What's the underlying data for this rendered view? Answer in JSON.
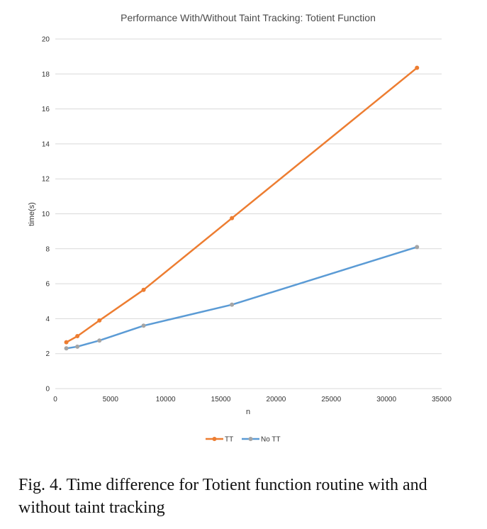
{
  "chart_data": {
    "type": "line",
    "title": "Performance With/Without Taint Tracking: Totient Function",
    "xlabel": "n",
    "ylabel": "time(s)",
    "xlim": [
      0,
      35000
    ],
    "ylim": [
      0,
      20
    ],
    "xticks": [
      0,
      5000,
      10000,
      15000,
      20000,
      25000,
      30000,
      35000
    ],
    "yticks": [
      0,
      2,
      4,
      6,
      8,
      10,
      12,
      14,
      16,
      18,
      20
    ],
    "grid": "horizontal",
    "legend_position": "bottom",
    "series": [
      {
        "name": "TT",
        "color": "#ed7d31",
        "x": [
          1000,
          2000,
          4000,
          8000,
          16000,
          32768
        ],
        "y": [
          2.65,
          3.0,
          3.9,
          5.65,
          9.75,
          18.35
        ]
      },
      {
        "name": "No TT",
        "color": "#5b9bd5",
        "marker_color": "#a5a5a5",
        "x": [
          1000,
          2000,
          4000,
          8000,
          16000,
          32768
        ],
        "y": [
          2.3,
          2.4,
          2.75,
          3.6,
          4.8,
          8.1
        ]
      }
    ]
  },
  "caption": "Fig. 4.  Time difference for Totient function routine with and without taint tracking"
}
